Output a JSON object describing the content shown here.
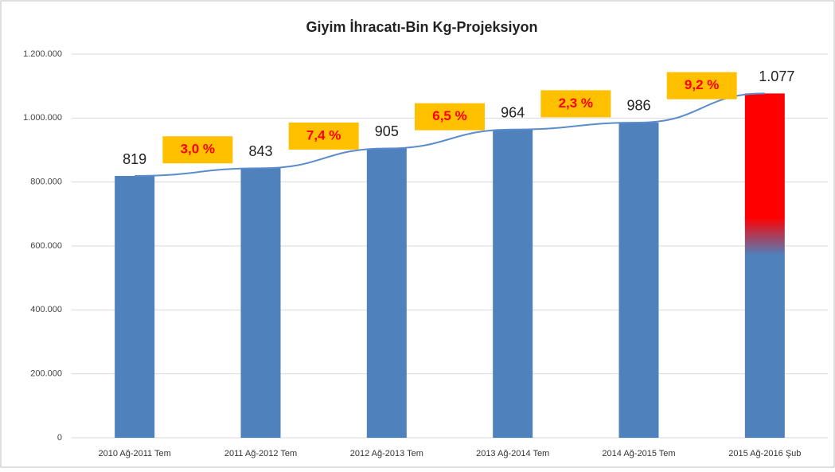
{
  "chart_data": {
    "type": "bar",
    "title": "Giyim İhracatı-Bin Kg-Projeksiyon",
    "categories": [
      "2010 Ağ-2011 Tem",
      "2011 Ağ-2012 Tem",
      "2012 Ağ-2013 Tem",
      "2013 Ağ-2014 Tem",
      "2014 Ağ-2015 Tem",
      "2015 Ağ-2016 Şub"
    ],
    "values": [
      819000,
      843000,
      905000,
      964000,
      986000,
      1077000
    ],
    "value_labels": [
      "819",
      "843",
      "905",
      "964",
      "986",
      "1.077"
    ],
    "color": "#4f81bd",
    "highlight_color": "#ff0000",
    "line_color": "#5b8ccc",
    "growth": {
      "values": [
        3.0,
        7.4,
        6.5,
        2.3,
        9.2
      ],
      "value_labels": [
        "3,0 %",
        "7,4 %",
        "6,5 %",
        "2,3 %",
        "9,2 %"
      ],
      "color": "#ffc000",
      "text_color": "#ff0000"
    },
    "ylim": [
      0,
      1200000
    ],
    "yticks": [
      0,
      {
        "value": 200000,
        "label": "200.000"
      },
      {
        "value": 400000,
        "label": "400.000"
      },
      {
        "value": 600000,
        "label": "600.000"
      },
      {
        "value": 800000,
        "label": "800.000"
      },
      {
        "value": 1000000,
        "label": "1.000.000"
      },
      {
        "value": 1200000,
        "label": "1.200.000"
      }
    ],
    "grid": true
  }
}
